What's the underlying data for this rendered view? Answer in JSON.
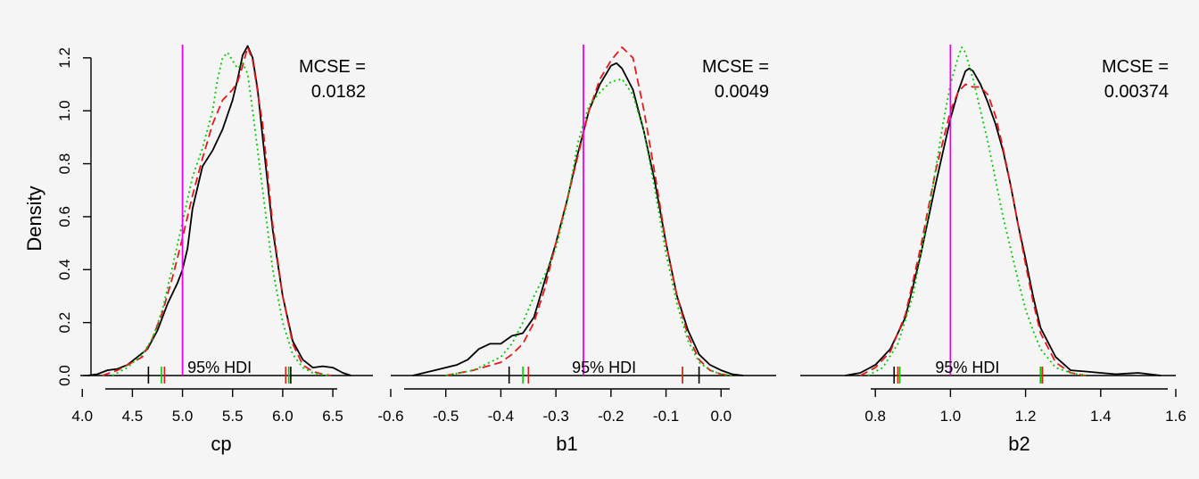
{
  "shared": {
    "ylabel": "Density",
    "hdi_label": "95% HDI"
  },
  "colors": {
    "chain1": "#000000",
    "chain2": "#e31a1c",
    "chain3": "#00cc00",
    "reference": "#ee00ee",
    "axis": "#000000"
  },
  "chart_data": [
    {
      "type": "line",
      "xlabel": "cp",
      "xlim": [
        3.98,
        6.9
      ],
      "ylim": [
        0,
        1.25
      ],
      "x_ticks": [
        "4.0",
        "4.5",
        "5.0",
        "5.5",
        "6.0",
        "6.5"
      ],
      "y_ticks": [
        "0.0",
        "0.2",
        "0.4",
        "0.6",
        "0.8",
        "1.0",
        "1.2"
      ],
      "mcse_label": "MCSE =",
      "mcse_value": "0.0182",
      "reference_x": 5.0,
      "hdi": {
        "chain1": [
          4.66,
          6.08
        ],
        "chain2": [
          4.82,
          6.03
        ],
        "chain3": [
          4.79,
          6.06
        ]
      },
      "series": [
        {
          "key": "chain1",
          "style": "solid",
          "x": [
            4.05,
            4.15,
            4.25,
            4.35,
            4.45,
            4.55,
            4.65,
            4.75,
            4.85,
            4.95,
            5.0,
            5.05,
            5.1,
            5.2,
            5.3,
            5.4,
            5.5,
            5.55,
            5.6,
            5.65,
            5.7,
            5.75,
            5.8,
            5.9,
            6.0,
            6.1,
            6.2,
            6.3,
            6.4,
            6.5,
            6.6,
            6.68
          ],
          "y": [
            0.0,
            0.005,
            0.02,
            0.025,
            0.04,
            0.07,
            0.1,
            0.17,
            0.27,
            0.35,
            0.4,
            0.48,
            0.63,
            0.79,
            0.85,
            0.93,
            1.04,
            1.12,
            1.21,
            1.245,
            1.2,
            1.08,
            0.9,
            0.55,
            0.3,
            0.13,
            0.06,
            0.03,
            0.035,
            0.03,
            0.01,
            0.0
          ]
        },
        {
          "key": "chain2",
          "style": "dashed",
          "x": [
            4.2,
            4.35,
            4.5,
            4.6,
            4.7,
            4.8,
            4.9,
            5.0,
            5.1,
            5.2,
            5.3,
            5.4,
            5.5,
            5.55,
            5.6,
            5.65,
            5.7,
            5.8,
            5.9,
            6.0,
            6.1,
            6.2,
            6.3,
            6.4,
            6.48
          ],
          "y": [
            0.0,
            0.02,
            0.05,
            0.07,
            0.14,
            0.24,
            0.37,
            0.52,
            0.68,
            0.82,
            0.95,
            1.04,
            1.08,
            1.11,
            1.17,
            1.24,
            1.19,
            0.95,
            0.57,
            0.3,
            0.12,
            0.04,
            0.015,
            0.005,
            0.0
          ]
        },
        {
          "key": "chain3",
          "style": "dotted",
          "x": [
            4.3,
            4.45,
            4.6,
            4.7,
            4.8,
            4.9,
            5.0,
            5.1,
            5.2,
            5.3,
            5.35,
            5.4,
            5.45,
            5.5,
            5.55,
            5.6,
            5.65,
            5.7,
            5.8,
            5.9,
            6.0,
            6.1,
            6.2,
            6.3,
            6.4,
            6.45
          ],
          "y": [
            0.0,
            0.03,
            0.08,
            0.14,
            0.25,
            0.41,
            0.58,
            0.75,
            0.86,
            1.0,
            1.12,
            1.2,
            1.22,
            1.19,
            1.16,
            1.18,
            1.14,
            1.0,
            0.7,
            0.4,
            0.2,
            0.08,
            0.03,
            0.01,
            0.003,
            0.0
          ]
        }
      ]
    },
    {
      "type": "line",
      "xlabel": "b1",
      "xlim": [
        -0.6,
        0.1
      ],
      "ylim": [
        0,
        1.25
      ],
      "x_ticks": [
        "-0.6",
        "-0.5",
        "-0.4",
        "-0.3",
        "-0.2",
        "-0.1",
        "0.0"
      ],
      "mcse_label": "MCSE =",
      "mcse_value": "0.0049",
      "reference_x": -0.25,
      "hdi": {
        "chain1": [
          -0.385,
          -0.04
        ],
        "chain2": [
          -0.35,
          -0.07
        ],
        "chain3": [
          -0.36,
          -0.07
        ]
      },
      "series": [
        {
          "key": "chain1",
          "style": "solid",
          "x": [
            -0.56,
            -0.52,
            -0.48,
            -0.46,
            -0.44,
            -0.42,
            -0.4,
            -0.38,
            -0.36,
            -0.34,
            -0.32,
            -0.3,
            -0.28,
            -0.26,
            -0.24,
            -0.22,
            -0.2,
            -0.19,
            -0.18,
            -0.16,
            -0.14,
            -0.12,
            -0.1,
            -0.08,
            -0.06,
            -0.04,
            -0.02,
            0.0,
            0.02,
            0.04
          ],
          "y": [
            0.0,
            0.02,
            0.04,
            0.06,
            0.1,
            0.12,
            0.12,
            0.15,
            0.16,
            0.22,
            0.36,
            0.5,
            0.66,
            0.84,
            1.0,
            1.1,
            1.17,
            1.18,
            1.16,
            1.08,
            0.92,
            0.73,
            0.5,
            0.3,
            0.17,
            0.08,
            0.04,
            0.02,
            0.005,
            0.0
          ]
        },
        {
          "key": "chain2",
          "style": "dashed",
          "x": [
            -0.5,
            -0.45,
            -0.4,
            -0.38,
            -0.36,
            -0.34,
            -0.32,
            -0.3,
            -0.28,
            -0.26,
            -0.24,
            -0.22,
            -0.2,
            -0.18,
            -0.16,
            -0.14,
            -0.12,
            -0.1,
            -0.08,
            -0.06,
            -0.04,
            -0.02,
            0.0,
            0.02
          ],
          "y": [
            0.0,
            0.02,
            0.05,
            0.08,
            0.12,
            0.2,
            0.33,
            0.5,
            0.66,
            0.83,
            1.0,
            1.12,
            1.19,
            1.24,
            1.2,
            1.0,
            0.76,
            0.5,
            0.3,
            0.15,
            0.06,
            0.02,
            0.005,
            0.0
          ]
        },
        {
          "key": "chain3",
          "style": "dotted",
          "x": [
            -0.5,
            -0.45,
            -0.4,
            -0.38,
            -0.36,
            -0.34,
            -0.32,
            -0.3,
            -0.28,
            -0.26,
            -0.24,
            -0.22,
            -0.2,
            -0.18,
            -0.16,
            -0.14,
            -0.12,
            -0.1,
            -0.08,
            -0.06,
            -0.04,
            -0.02,
            0.0,
            0.02
          ],
          "y": [
            0.0,
            0.02,
            0.07,
            0.12,
            0.2,
            0.3,
            0.38,
            0.48,
            0.65,
            0.88,
            1.02,
            1.07,
            1.11,
            1.12,
            1.06,
            0.92,
            0.7,
            0.46,
            0.27,
            0.13,
            0.05,
            0.02,
            0.005,
            0.0
          ]
        }
      ]
    },
    {
      "type": "line",
      "xlabel": "b2",
      "xlim": [
        0.6,
        1.6
      ],
      "ylim": [
        0,
        1.25
      ],
      "x_ticks": [
        "0.8",
        "1.0",
        "1.2",
        "1.4",
        "1.6"
      ],
      "mcse_label": "MCSE =",
      "mcse_value": "0.00374",
      "reference_x": 1.0,
      "hdi": {
        "chain1": [
          0.85,
          1.24
        ],
        "chain2": [
          0.86,
          1.245
        ],
        "chain3": [
          0.865,
          1.24
        ]
      },
      "series": [
        {
          "key": "chain1",
          "style": "solid",
          "x": [
            0.72,
            0.76,
            0.8,
            0.84,
            0.88,
            0.92,
            0.96,
            1.0,
            1.02,
            1.04,
            1.05,
            1.06,
            1.08,
            1.1,
            1.12,
            1.14,
            1.16,
            1.18,
            1.2,
            1.22,
            1.24,
            1.28,
            1.32,
            1.36,
            1.4,
            1.44,
            1.5,
            1.56
          ],
          "y": [
            0.0,
            0.01,
            0.04,
            0.1,
            0.22,
            0.45,
            0.72,
            0.97,
            1.07,
            1.15,
            1.16,
            1.15,
            1.1,
            1.03,
            0.95,
            0.85,
            0.72,
            0.57,
            0.44,
            0.3,
            0.18,
            0.07,
            0.02,
            0.015,
            0.01,
            0.005,
            0.01,
            0.0
          ]
        },
        {
          "key": "chain2",
          "style": "dashed",
          "x": [
            0.76,
            0.8,
            0.84,
            0.88,
            0.92,
            0.96,
            1.0,
            1.02,
            1.04,
            1.06,
            1.08,
            1.1,
            1.12,
            1.14,
            1.16,
            1.18,
            1.2,
            1.22,
            1.24,
            1.28,
            1.32,
            1.36
          ],
          "y": [
            0.0,
            0.03,
            0.09,
            0.23,
            0.48,
            0.77,
            1.0,
            1.07,
            1.1,
            1.09,
            1.09,
            1.06,
            0.98,
            0.86,
            0.72,
            0.57,
            0.42,
            0.28,
            0.16,
            0.05,
            0.01,
            0.0
          ]
        },
        {
          "key": "chain3",
          "style": "dotted",
          "x": [
            0.78,
            0.82,
            0.86,
            0.9,
            0.94,
            0.98,
            1.0,
            1.02,
            1.03,
            1.04,
            1.06,
            1.08,
            1.1,
            1.12,
            1.14,
            1.16,
            1.18,
            1.2,
            1.22,
            1.24,
            1.28,
            1.32,
            1.36
          ],
          "y": [
            0.0,
            0.03,
            0.12,
            0.3,
            0.6,
            0.95,
            1.1,
            1.2,
            1.24,
            1.22,
            1.12,
            1.0,
            0.88,
            0.74,
            0.6,
            0.48,
            0.36,
            0.25,
            0.17,
            0.1,
            0.03,
            0.01,
            0.0
          ]
        }
      ]
    }
  ]
}
